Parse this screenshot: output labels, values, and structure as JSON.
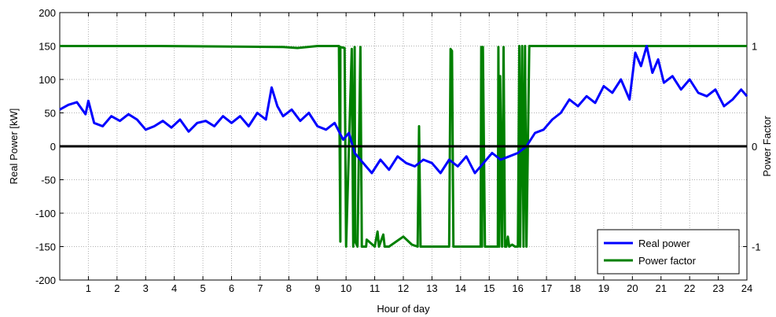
{
  "chart_data": {
    "type": "line",
    "title": "",
    "xlabel": "Hour of day",
    "ylabel": "Real Power [kW]",
    "y2label": "Power Factor",
    "xlim": [
      0,
      24
    ],
    "ylim": [
      -200,
      200
    ],
    "y2lim": [
      -1.3333,
      1.3333
    ],
    "xticks": [
      1,
      2,
      3,
      4,
      5,
      6,
      7,
      8,
      9,
      10,
      11,
      12,
      13,
      14,
      15,
      16,
      17,
      18,
      19,
      20,
      21,
      22,
      23,
      24
    ],
    "yticks": [
      200,
      150,
      100,
      50,
      0,
      -50,
      -100,
      -150,
      -200
    ],
    "y2ticks": [
      1,
      0,
      -1
    ],
    "grid": true,
    "legend_position": "bottom-right",
    "colors": {
      "real_power": "#0000ff",
      "power_factor": "#008000",
      "zero_line": "#000000"
    },
    "series": [
      {
        "name": "Real power",
        "axis": "left",
        "x": [
          0,
          0.3,
          0.6,
          0.9,
          1.0,
          1.2,
          1.5,
          1.8,
          2.1,
          2.4,
          2.7,
          3.0,
          3.3,
          3.6,
          3.9,
          4.2,
          4.5,
          4.8,
          5.1,
          5.4,
          5.7,
          6.0,
          6.3,
          6.6,
          6.9,
          7.2,
          7.4,
          7.6,
          7.8,
          8.1,
          8.4,
          8.7,
          9.0,
          9.3,
          9.6,
          9.9,
          10.1,
          10.3,
          10.6,
          10.9,
          11.2,
          11.5,
          11.8,
          12.1,
          12.4,
          12.7,
          13.0,
          13.3,
          13.6,
          13.9,
          14.2,
          14.5,
          14.8,
          15.1,
          15.4,
          15.7,
          16.0,
          16.3,
          16.6,
          16.9,
          17.2,
          17.5,
          17.8,
          18.1,
          18.4,
          18.7,
          19.0,
          19.3,
          19.6,
          19.9,
          20.1,
          20.3,
          20.5,
          20.7,
          20.9,
          21.1,
          21.4,
          21.7,
          22.0,
          22.3,
          22.6,
          22.9,
          23.2,
          23.5,
          23.8,
          24.0
        ],
        "y": [
          55,
          62,
          66,
          48,
          68,
          35,
          30,
          45,
          38,
          48,
          40,
          25,
          30,
          38,
          28,
          40,
          22,
          35,
          38,
          30,
          45,
          35,
          45,
          30,
          50,
          40,
          88,
          60,
          45,
          55,
          38,
          50,
          30,
          25,
          35,
          10,
          20,
          -10,
          -25,
          -40,
          -20,
          -35,
          -15,
          -25,
          -30,
          -20,
          -25,
          -40,
          -20,
          -30,
          -15,
          -40,
          -25,
          -10,
          -20,
          -15,
          -10,
          0,
          20,
          25,
          40,
          50,
          70,
          60,
          75,
          65,
          90,
          80,
          100,
          70,
          140,
          120,
          150,
          110,
          130,
          95,
          105,
          85,
          100,
          80,
          75,
          85,
          60,
          70,
          85,
          75
        ]
      },
      {
        "name": "Power factor",
        "axis": "right",
        "x": [
          0,
          3.5,
          7.8,
          8.3,
          9.0,
          9.75,
          9.8,
          9.8,
          9.95,
          10.0,
          10.2,
          10.25,
          10.3,
          10.32,
          10.4,
          10.5,
          10.55,
          10.7,
          10.72,
          11.0,
          11.1,
          11.15,
          11.3,
          11.35,
          11.5,
          12.0,
          12.3,
          12.5,
          12.55,
          12.6,
          12.8,
          13.4,
          13.6,
          13.65,
          13.7,
          13.75,
          14.0,
          14.5,
          14.7,
          14.72,
          14.75,
          14.78,
          14.85,
          14.9,
          15.2,
          15.3,
          15.32,
          15.35,
          15.38,
          15.45,
          15.5,
          15.55,
          15.6,
          15.65,
          15.7,
          15.8,
          15.9,
          16.0,
          16.05,
          16.08,
          16.15,
          16.2,
          16.25,
          16.3,
          16.4,
          17.0,
          20.0,
          24.0
        ],
        "y": [
          1.0,
          1.0,
          0.99,
          0.98,
          1.0,
          1.0,
          -0.95,
          0.99,
          0.98,
          -1.0,
          0.97,
          -1.0,
          0.99,
          -0.95,
          -1.0,
          0.99,
          -1.0,
          -1.0,
          -0.93,
          -1.0,
          -0.85,
          -1.0,
          -0.88,
          -1.0,
          -1.0,
          -0.9,
          -0.98,
          -1.0,
          0.2,
          -1.0,
          -1.0,
          -1.0,
          -1.0,
          0.97,
          0.95,
          -1.0,
          -1.0,
          -1.0,
          -1.0,
          0.99,
          -1.0,
          0.99,
          -1.0,
          -1.0,
          -1.0,
          -1.0,
          0.99,
          -1.0,
          0.7,
          -1.0,
          0.99,
          -1.0,
          -1.0,
          -0.9,
          -1.0,
          -0.98,
          -1.0,
          -1.0,
          1.0,
          -1.0,
          1.0,
          -1.0,
          1.0,
          -1.0,
          1.0,
          1.0,
          1.0,
          1.0
        ]
      }
    ]
  }
}
